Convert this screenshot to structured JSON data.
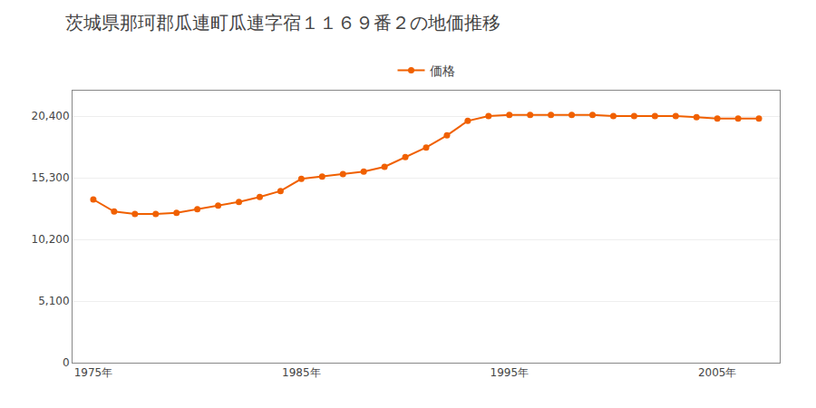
{
  "chart_data": {
    "type": "line",
    "title": "茨城県那珂郡瓜連町瓜連字宿１１６９番２の地価推移",
    "x": [
      1975,
      1976,
      1977,
      1978,
      1979,
      1980,
      1981,
      1982,
      1983,
      1984,
      1985,
      1986,
      1987,
      1988,
      1989,
      1990,
      1991,
      1992,
      1993,
      1994,
      1995,
      1996,
      1997,
      1998,
      1999,
      2000,
      2001,
      2002,
      2003,
      2004,
      2005,
      2006,
      2007
    ],
    "series": [
      {
        "name": "価格",
        "color": "#f06000",
        "marker": "circle",
        "line_style": "solid",
        "values": [
          13500,
          12500,
          12300,
          12300,
          12400,
          12700,
          13000,
          13300,
          13700,
          14200,
          15200,
          15400,
          15600,
          15800,
          16200,
          17000,
          17800,
          18800,
          20000,
          20400,
          20500,
          20500,
          20500,
          20500,
          20500,
          20400,
          20400,
          20400,
          20400,
          20300,
          20200,
          20200,
          20200
        ]
      }
    ],
    "xlim": [
      1974,
      2008
    ],
    "xticks": [
      {
        "value": 1975,
        "label": "1975年"
      },
      {
        "value": 1985,
        "label": "1985年"
      },
      {
        "value": 1995,
        "label": "1995年"
      },
      {
        "value": 2005,
        "label": "2005年"
      }
    ],
    "ylim": [
      0,
      22500
    ],
    "yticks": [
      0,
      {
        "value": 5100,
        "label": "5,100"
      },
      {
        "value": 10200,
        "label": "10,200"
      },
      {
        "value": 15300,
        "label": "15,300"
      },
      {
        "value": 20400,
        "label": "20,400"
      }
    ],
    "grid": "y",
    "legend": "top"
  }
}
